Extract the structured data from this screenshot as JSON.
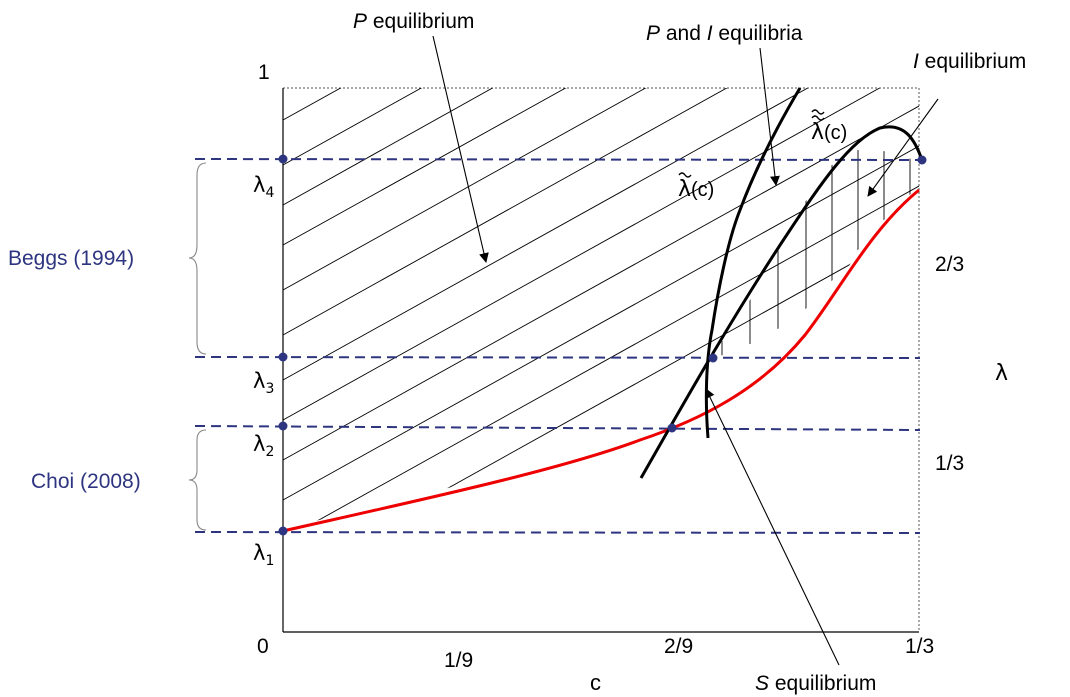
{
  "axes": {
    "x_label": "c",
    "y_label": "λ",
    "x_ticks": [
      "0",
      "1/9",
      "2/9",
      "1/3"
    ],
    "y_ticks_left": [
      "1"
    ],
    "y_ticks_right": [
      "2/3",
      "1/3"
    ]
  },
  "lambda_levels": {
    "l1": {
      "sym": "λ",
      "sub": "1"
    },
    "l2": {
      "sym": "λ",
      "sub": "2"
    },
    "l3": {
      "sym": "λ",
      "sub": "3"
    },
    "l4": {
      "sym": "λ",
      "sub": "4"
    }
  },
  "brace_labels": {
    "beggs": "Beggs (1994)",
    "choi": "Choi (2008)"
  },
  "region_labels": {
    "p_eq": {
      "italic": "P",
      "rest": " equilibrium"
    },
    "pi_eq": {
      "italic1": "P",
      "mid": " and ",
      "italic2": "I",
      "rest": " equilibria"
    },
    "i_eq": {
      "italic": "I",
      "rest": " equilibrium"
    },
    "s_eq": {
      "italic": "S",
      "rest": " equilibrium"
    }
  },
  "curve_labels": {
    "lambda_tilde": {
      "sym": "λ",
      "arg": "(c)",
      "tildes": 1
    },
    "lambda_double_tilde": {
      "sym": "λ",
      "arg": "(c)",
      "tildes": 2
    }
  },
  "colors": {
    "dashed": "#2e3580",
    "red_curve": "#ee0000",
    "curve": "#000000",
    "hatch": "#000000"
  }
}
